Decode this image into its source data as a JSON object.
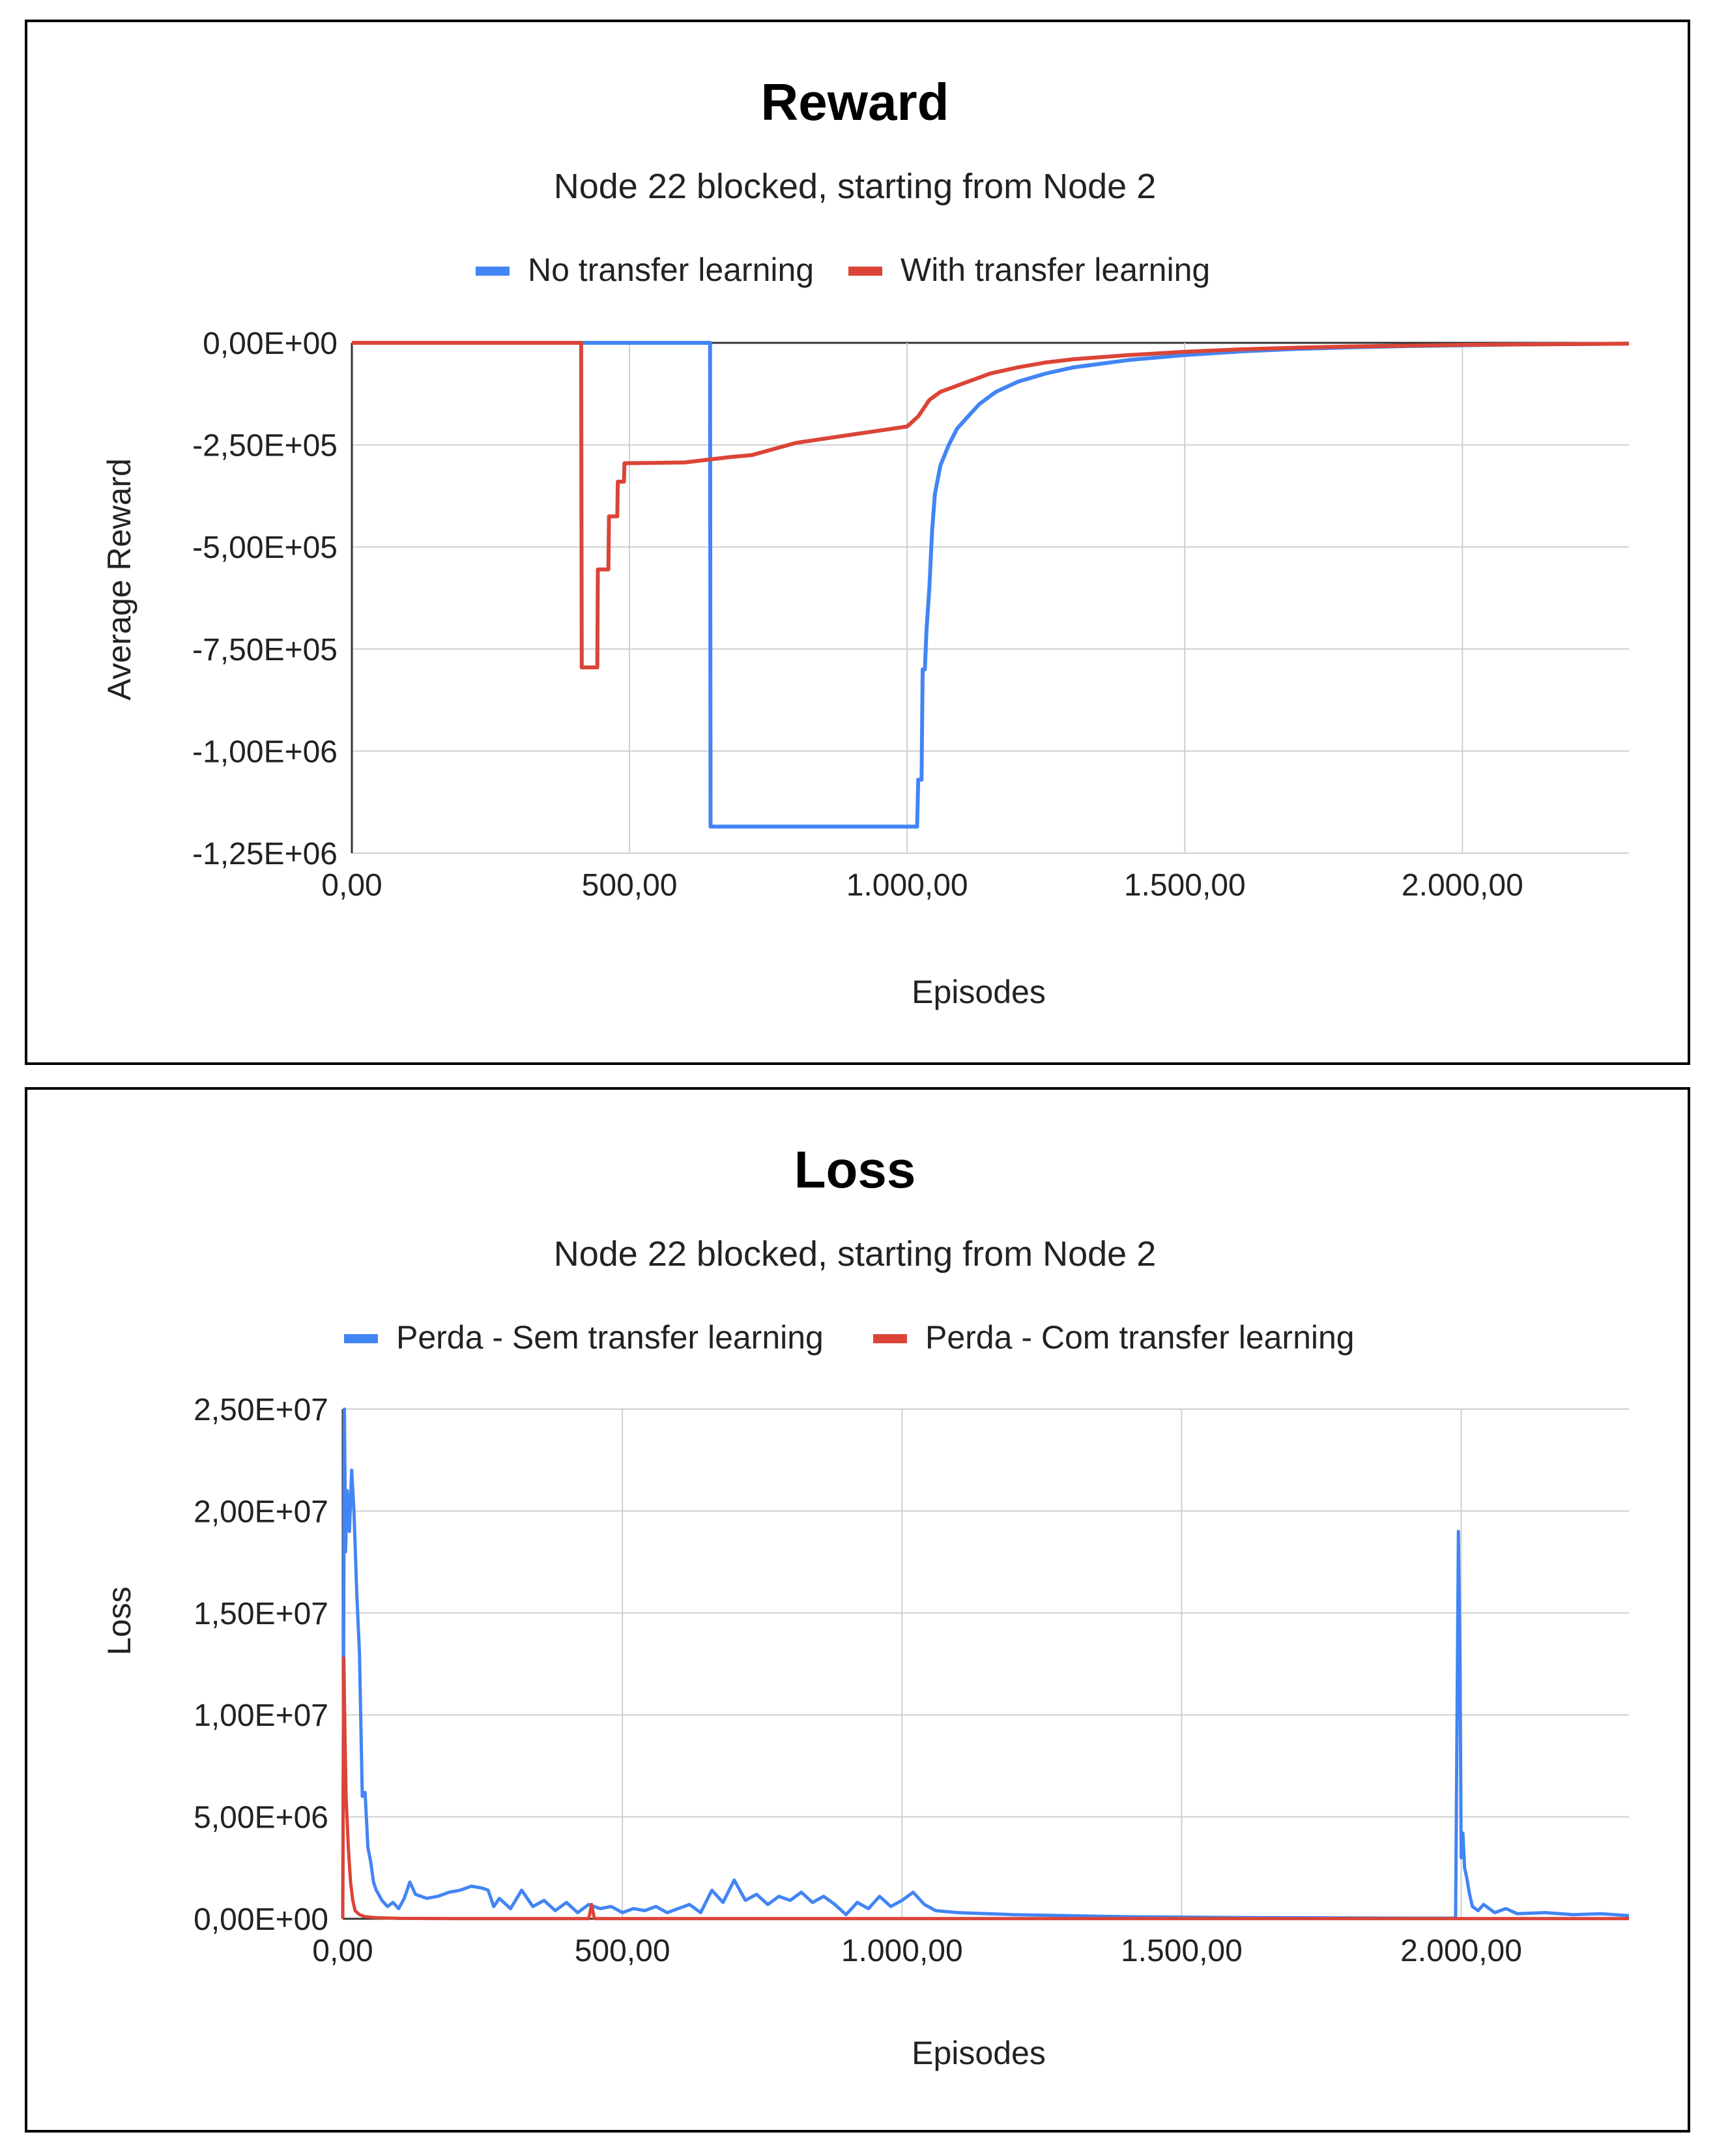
{
  "chart_data": [
    {
      "type": "line",
      "title": "Reward",
      "subtitle": "Node 22 blocked, starting from Node 2",
      "xlabel": "Episodes",
      "ylabel": "Average Reward",
      "xlim": [
        0,
        2300
      ],
      "ylim": [
        -1250000,
        0
      ],
      "x_ticks": [
        0,
        500,
        1000,
        1500,
        2000
      ],
      "x_tick_labels": [
        "0,00",
        "500,00",
        "1.000,00",
        "1.500,00",
        "2.000,00"
      ],
      "y_ticks": [
        0,
        -250000,
        -500000,
        -750000,
        -1000000,
        -1250000
      ],
      "y_tick_labels": [
        "0,00E+00",
        "-2,50E+05",
        "-5,00E+05",
        "-7,50E+05",
        "-1,00E+06",
        "-1,25E+06"
      ],
      "grid": true,
      "legend_position": "top",
      "series": [
        {
          "name": "No transfer learning",
          "color": "#4285f4",
          "x": [
            0,
            645,
            646,
            1000,
            1018,
            1020,
            1026,
            1028,
            1032,
            1035,
            1040,
            1045,
            1050,
            1060,
            1075,
            1090,
            1110,
            1130,
            1160,
            1200,
            1250,
            1300,
            1400,
            1500,
            1600,
            1700,
            1800,
            1900,
            2000,
            2100,
            2200,
            2300
          ],
          "y": [
            0,
            0,
            -1185000,
            -1185000,
            -1185000,
            -1070000,
            -1070000,
            -800000,
            -800000,
            -700000,
            -600000,
            -460000,
            -370000,
            -300000,
            -250000,
            -210000,
            -180000,
            -150000,
            -120000,
            -95000,
            -75000,
            -60000,
            -42000,
            -30000,
            -21000,
            -15000,
            -11000,
            -8000,
            -6000,
            -4000,
            -3000,
            -2000
          ]
        },
        {
          "name": "With transfer learning",
          "color": "#db4437",
          "x": [
            0,
            413,
            414,
            442,
            443,
            462,
            463,
            478,
            479,
            490,
            491,
            600,
            680,
            720,
            760,
            800,
            850,
            900,
            950,
            1000,
            1020,
            1040,
            1060,
            1080,
            1100,
            1120,
            1150,
            1200,
            1250,
            1300,
            1400,
            1500,
            1600,
            1700,
            1800,
            1900,
            2000,
            2100,
            2200,
            2300
          ],
          "y": [
            0,
            0,
            -795000,
            -795000,
            -555000,
            -555000,
            -425000,
            -425000,
            -340000,
            -340000,
            -295000,
            -293000,
            -280000,
            -275000,
            -260000,
            -245000,
            -235000,
            -225000,
            -215000,
            -205000,
            -180000,
            -140000,
            -120000,
            -110000,
            -100000,
            -90000,
            -75000,
            -60000,
            -48000,
            -40000,
            -30000,
            -22000,
            -16000,
            -12000,
            -9000,
            -7000,
            -5000,
            -4000,
            -3000,
            -2000
          ]
        }
      ]
    },
    {
      "type": "line",
      "title": "Loss",
      "subtitle": "Node 22 blocked, starting from Node 2",
      "xlabel": "Episodes",
      "ylabel": "Loss",
      "xlim": [
        0,
        2300
      ],
      "ylim": [
        0,
        25000000
      ],
      "x_ticks": [
        0,
        500,
        1000,
        1500,
        2000
      ],
      "x_tick_labels": [
        "0,00",
        "500,00",
        "1.000,00",
        "1.500,00",
        "2.000,00"
      ],
      "y_ticks": [
        25000000,
        20000000,
        15000000,
        10000000,
        5000000,
        0
      ],
      "y_tick_labels": [
        "2,50E+07",
        "2,00E+07",
        "1,50E+07",
        "1,00E+07",
        "5,00E+06",
        "0,00E+00"
      ],
      "grid": true,
      "legend_position": "top",
      "series": [
        {
          "name": "Perda - Sem transfer learning",
          "color": "#4285f4",
          "x": [
            0,
            3,
            5,
            8,
            12,
            16,
            20,
            25,
            30,
            35,
            40,
            45,
            50,
            55,
            60,
            70,
            80,
            90,
            100,
            110,
            120,
            130,
            150,
            170,
            190,
            210,
            230,
            250,
            260,
            270,
            280,
            300,
            320,
            340,
            360,
            380,
            400,
            420,
            440,
            460,
            480,
            500,
            520,
            540,
            560,
            580,
            600,
            620,
            640,
            660,
            680,
            700,
            720,
            740,
            760,
            780,
            800,
            820,
            840,
            860,
            880,
            900,
            920,
            940,
            960,
            980,
            1000,
            1020,
            1040,
            1060,
            1100,
            1200,
            1300,
            1400,
            1500,
            1600,
            1700,
            1800,
            1900,
            1990,
            1995,
            1998,
            2000,
            2003,
            2006,
            2010,
            2015,
            2020,
            2030,
            2040,
            2060,
            2080,
            2100,
            2150,
            2200,
            2250,
            2300
          ],
          "y": [
            0,
            25000000,
            18000000,
            21000000,
            19000000,
            22000000,
            20000000,
            16000000,
            13000000,
            6000000,
            6200000,
            3500000,
            2800000,
            1800000,
            1400000,
            900000,
            600000,
            800000,
            500000,
            1000000,
            1800000,
            1200000,
            1000000,
            1100000,
            1300000,
            1400000,
            1600000,
            1500000,
            1400000,
            600000,
            1000000,
            500000,
            1400000,
            600000,
            900000,
            400000,
            800000,
            300000,
            700000,
            500000,
            600000,
            300000,
            500000,
            400000,
            600000,
            300000,
            500000,
            700000,
            300000,
            1400000,
            800000,
            1900000,
            900000,
            1200000,
            700000,
            1100000,
            900000,
            1300000,
            800000,
            1100000,
            700000,
            200000,
            800000,
            500000,
            1100000,
            600000,
            900000,
            1300000,
            700000,
            400000,
            300000,
            200000,
            150000,
            100000,
            80000,
            60000,
            50000,
            40000,
            30000,
            30000,
            19000000,
            12000000,
            3000000,
            4200000,
            2500000,
            2000000,
            1200000,
            600000,
            400000,
            700000,
            300000,
            500000,
            250000,
            300000,
            200000,
            250000,
            150000
          ]
        },
        {
          "name": "Perda - Com transfer learning",
          "color": "#db4437",
          "x": [
            0,
            2,
            4,
            6,
            10,
            14,
            18,
            22,
            30,
            40,
            60,
            100,
            200,
            400,
            440,
            445,
            450,
            460,
            500,
            700,
            900,
            1100,
            1500,
            2000,
            2300
          ],
          "y": [
            0,
            12800000,
            9000000,
            6000000,
            3500000,
            1800000,
            900000,
            400000,
            200000,
            100000,
            50000,
            20000,
            10000,
            10000,
            10000,
            700000,
            10000,
            10000,
            10000,
            10000,
            10000,
            10000,
            10000,
            10000,
            10000
          ]
        }
      ]
    }
  ]
}
